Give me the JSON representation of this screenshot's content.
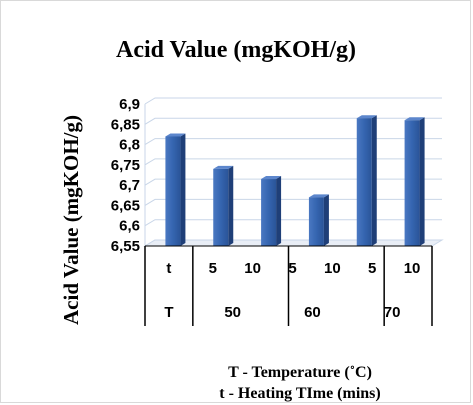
{
  "chart_data": {
    "type": "bar",
    "title": "Acid Value (mgKOH/g)",
    "ylabel": "Acid Value (mgKOH/g)",
    "ylim": [
      6.55,
      6.9
    ],
    "yticks": [
      "6,55",
      "6,6",
      "6,65",
      "6,7",
      "6,75",
      "6,8",
      "6,85",
      "6,9"
    ],
    "grid": true,
    "categories": [
      {
        "t": "5",
        "T": "50"
      },
      {
        "t": "10",
        "T": "50"
      },
      {
        "t": "5",
        "T": "60"
      },
      {
        "t": "10",
        "T": "60"
      },
      {
        "t": "5",
        "T": "70"
      },
      {
        "t": "10",
        "T": "70"
      }
    ],
    "values": [
      6.82,
      6.74,
      6.715,
      6.67,
      6.865,
      6.86
    ],
    "row_labels": {
      "t": "t",
      "T": "T"
    },
    "groups": [
      "50",
      "60",
      "70"
    ],
    "color": "#2f5597"
  },
  "footer": {
    "line1": "T - Temperature (˚C)",
    "line2": "t - Heating TIme (mins)"
  }
}
